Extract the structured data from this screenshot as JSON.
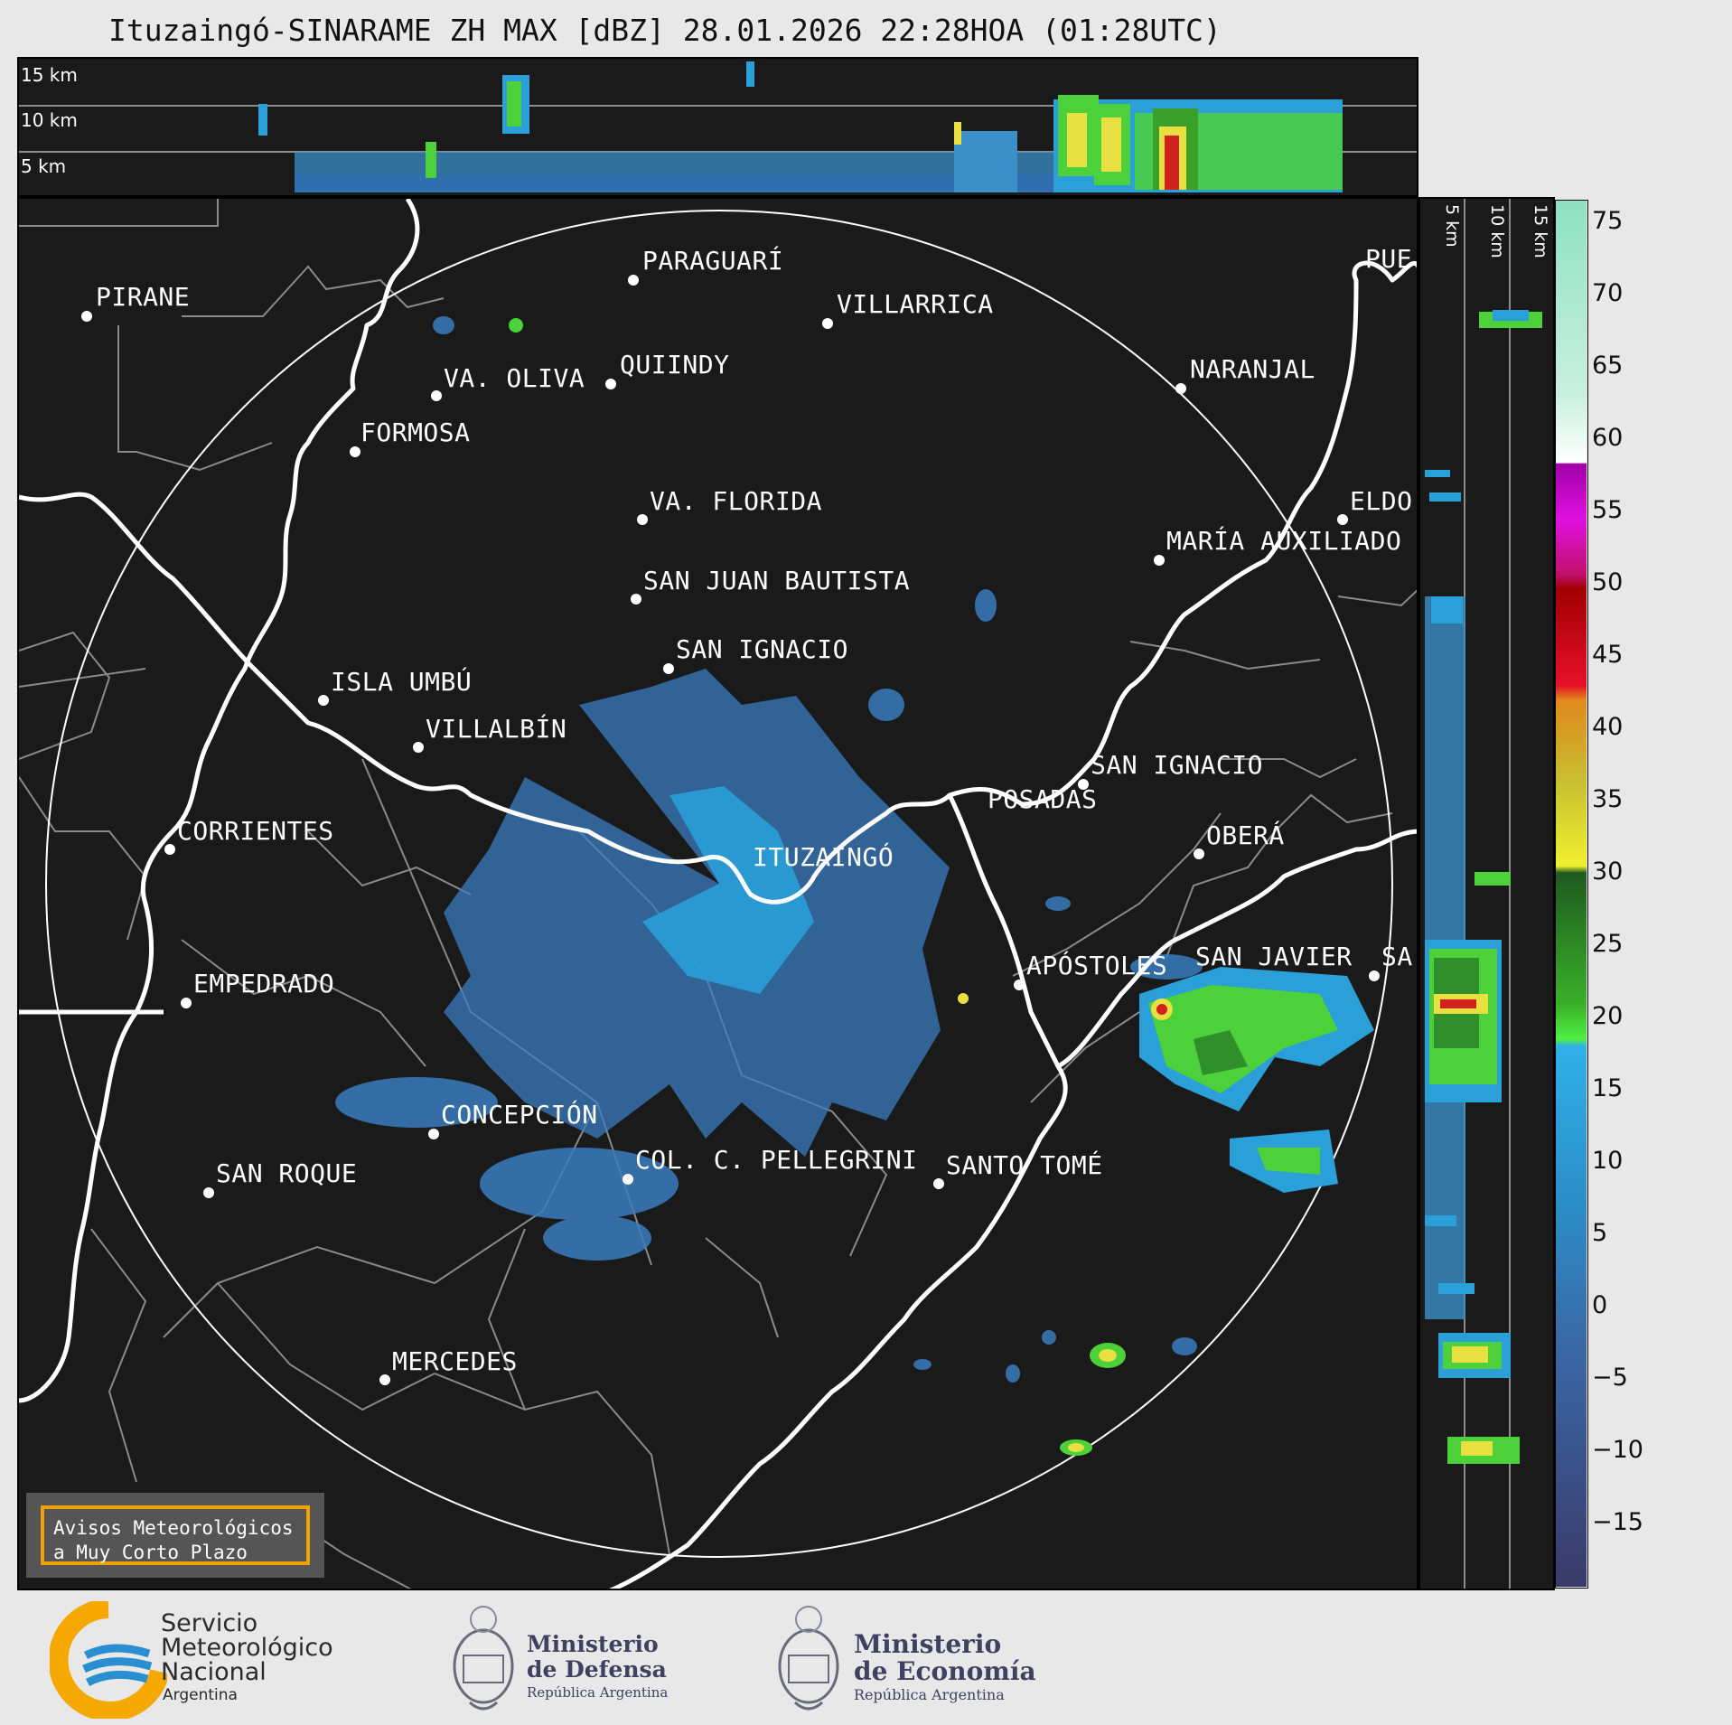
{
  "title": "Ituzaingó-SINARAME ZH MAX [dBZ] 28.01.2026 22:28HOA (01:28UTC)",
  "height_labels": {
    "h15": "15 km",
    "h10": "10 km",
    "h5": "5 km"
  },
  "cities": [
    {
      "name": "PIRANE"
    },
    {
      "name": "PARAGUARÍ"
    },
    {
      "name": "VILLARRICA"
    },
    {
      "name": "QUIINDY"
    },
    {
      "name": "VA. OLIVA"
    },
    {
      "name": "FORMOSA"
    },
    {
      "name": "NARANJAL"
    },
    {
      "name": "PUE"
    },
    {
      "name": "ELDO"
    },
    {
      "name": "MARÍA AUXILIADO"
    },
    {
      "name": "VA. FLORIDA"
    },
    {
      "name": "SAN JUAN BAUTISTA"
    },
    {
      "name": "SAN IGNACIO"
    },
    {
      "name": "ISLA UMBÚ"
    },
    {
      "name": "VILLALBÍN"
    },
    {
      "name": "SAN IGNACIO"
    },
    {
      "name": "POSADAS"
    },
    {
      "name": "CORRIENTES"
    },
    {
      "name": "ITUZAINGÓ"
    },
    {
      "name": "OBERÁ"
    },
    {
      "name": "EMPEDRADO"
    },
    {
      "name": "APÓSTOLES"
    },
    {
      "name": "SAN JAVIER"
    },
    {
      "name": "SA"
    },
    {
      "name": "CONCEPCIÓN"
    },
    {
      "name": "SAN ROQUE"
    },
    {
      "name": "COL. C. PELLEGRINI"
    },
    {
      "name": "SANTO TOMÉ"
    },
    {
      "name": "MERCEDES"
    }
  ],
  "colorbar": {
    "unit": "dBZ",
    "ticks": [
      "75",
      "70",
      "65",
      "60",
      "55",
      "50",
      "45",
      "40",
      "35",
      "30",
      "25",
      "20",
      "15",
      "10",
      "5",
      "0",
      "−5",
      "−10",
      "−15"
    ]
  },
  "warning_box": {
    "line1": "Avisos Meteorológicos",
    "line2": "a Muy Corto Plazo"
  },
  "logos": {
    "smn": {
      "line1": "Servicio",
      "line2": "Meteorológico",
      "line3": "Nacional",
      "line4": "Argentina"
    },
    "defensa": {
      "line1": "Ministerio",
      "line2": "de Defensa",
      "line3": "República Argentina"
    },
    "economia": {
      "line1": "Ministerio",
      "line2": "de Economía",
      "line3": "República Argentina"
    }
  },
  "colors": {
    "background": "#1a1a1a",
    "accent_warning": "#f0a000"
  }
}
